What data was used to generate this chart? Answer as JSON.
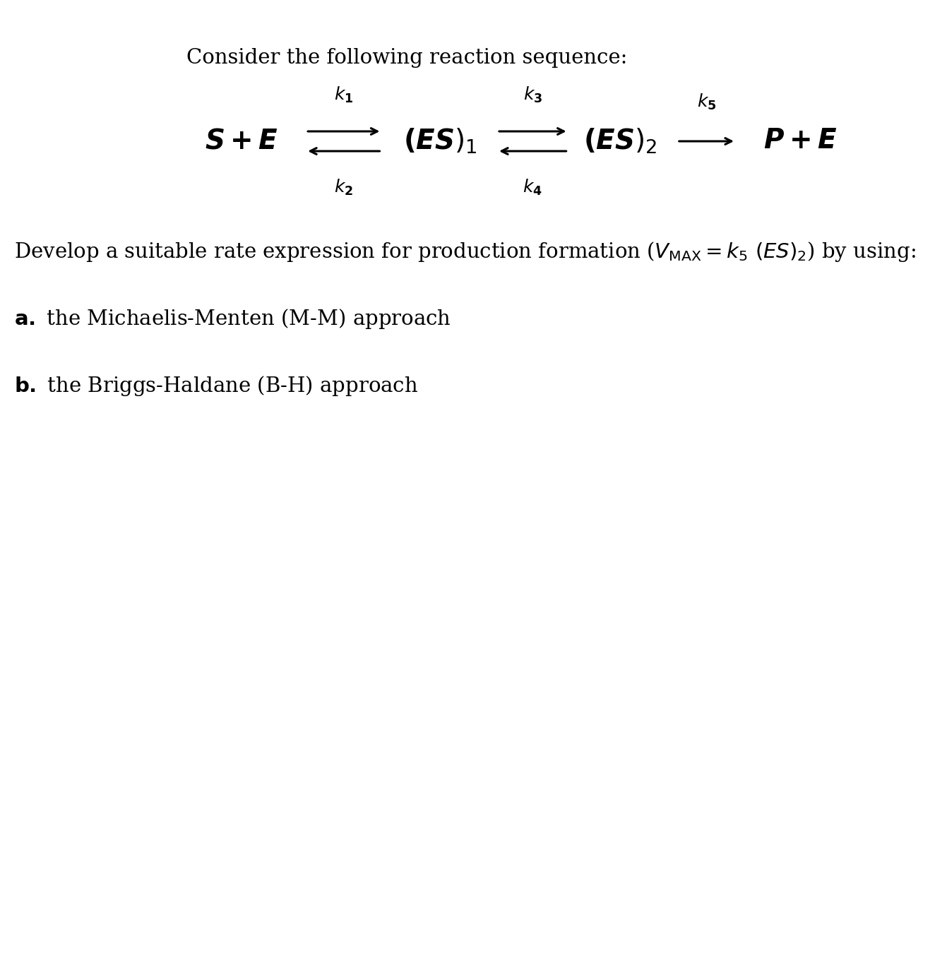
{
  "background_color": "#ffffff",
  "text_color": "#000000",
  "title": "Consider the following reaction sequence:",
  "title_fontsize": 21,
  "species_fontsize": 28,
  "k_fontsize": 18,
  "body_fontsize": 21,
  "item_fontsize": 21,
  "fig_width": 13.41,
  "fig_height": 13.58,
  "dpi": 100
}
